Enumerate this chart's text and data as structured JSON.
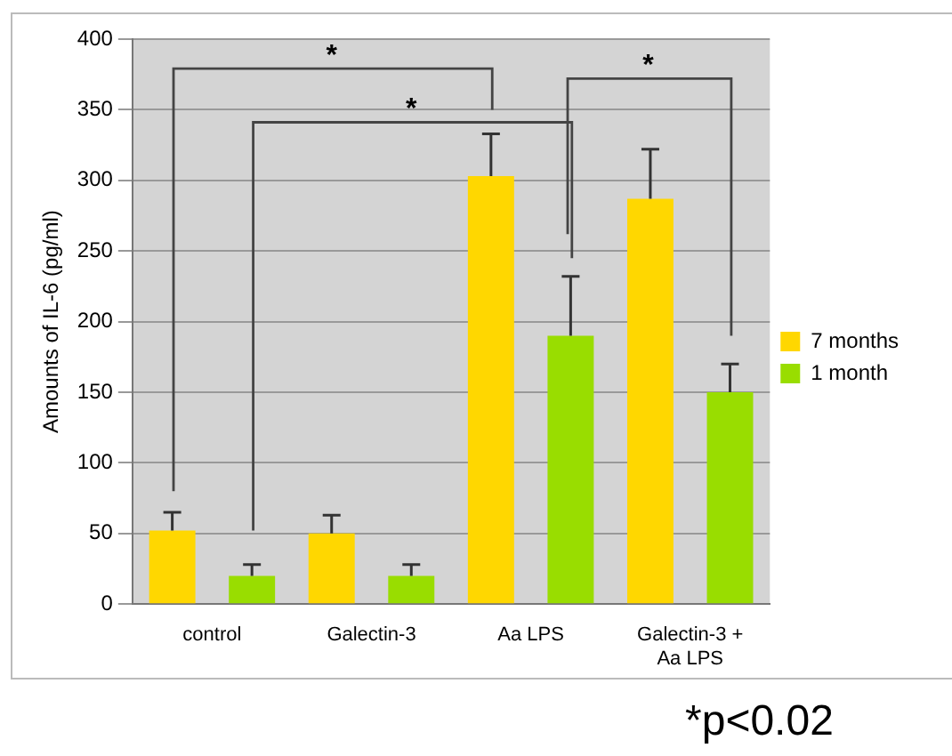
{
  "chart_data": {
    "type": "bar",
    "ylabel": "Amounts of IL-6 (pg/ml)",
    "categories": [
      "control",
      "Galectin-3",
      "Aa LPS",
      "Galectin-3 + Aa LPS"
    ],
    "series": [
      {
        "name": "7 months",
        "color": "#ffd700",
        "values": [
          52,
          50,
          303,
          287
        ],
        "errors": [
          [
            52,
            65
          ],
          [
            50,
            63
          ],
          [
            303,
            333
          ],
          [
            287,
            322
          ]
        ]
      },
      {
        "name": "1 month",
        "color": "#99dd00",
        "values": [
          20,
          20,
          190,
          150
        ],
        "errors": [
          [
            20,
            28
          ],
          [
            20,
            28
          ],
          [
            190,
            232
          ],
          [
            150,
            170
          ]
        ]
      }
    ],
    "ylim": [
      0,
      400
    ],
    "yticks": [
      0,
      50,
      100,
      150,
      200,
      250,
      300,
      350,
      400
    ],
    "grid": "y",
    "legend": "right",
    "annotations": [
      "*",
      "*",
      "*",
      "*p<0.02"
    ]
  }
}
